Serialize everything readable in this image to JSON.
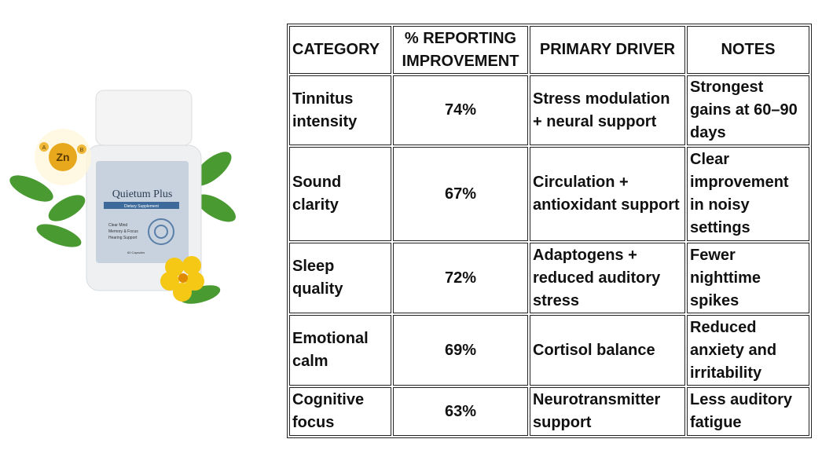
{
  "product": {
    "brand": "Quietum Plus",
    "subtitle": "Dietary Supplement",
    "bullets": [
      "Clear Mind",
      "Memory & Focus",
      "Hearing Support"
    ],
    "count": "60 Capsules",
    "badge": "Zn",
    "badge_letters": [
      "A",
      "B"
    ]
  },
  "table": {
    "header": [
      "CATEGORY",
      "% REPORTING IMPROVEMENT",
      "PRIMARY DRIVER",
      "NOTES"
    ],
    "rows": [
      [
        "Tinnitus intensity",
        "74%",
        "Stress modulation + neural support",
        "Strongest gains at 60–90 days"
      ],
      [
        "Sound clarity",
        "67%",
        "Circulation + antioxidant support",
        "Clear improvement in noisy settings"
      ],
      [
        "Sleep quality",
        "72%",
        "Adaptogens + reduced auditory stress",
        "Fewer nighttime spikes"
      ],
      [
        "Emotional calm",
        "69%",
        "Cortisol balance",
        "Reduced anxiety and irritability"
      ],
      [
        "Cognitive focus",
        "63%",
        "Neurotransmitter support",
        "Less auditory fatigue"
      ]
    ]
  }
}
